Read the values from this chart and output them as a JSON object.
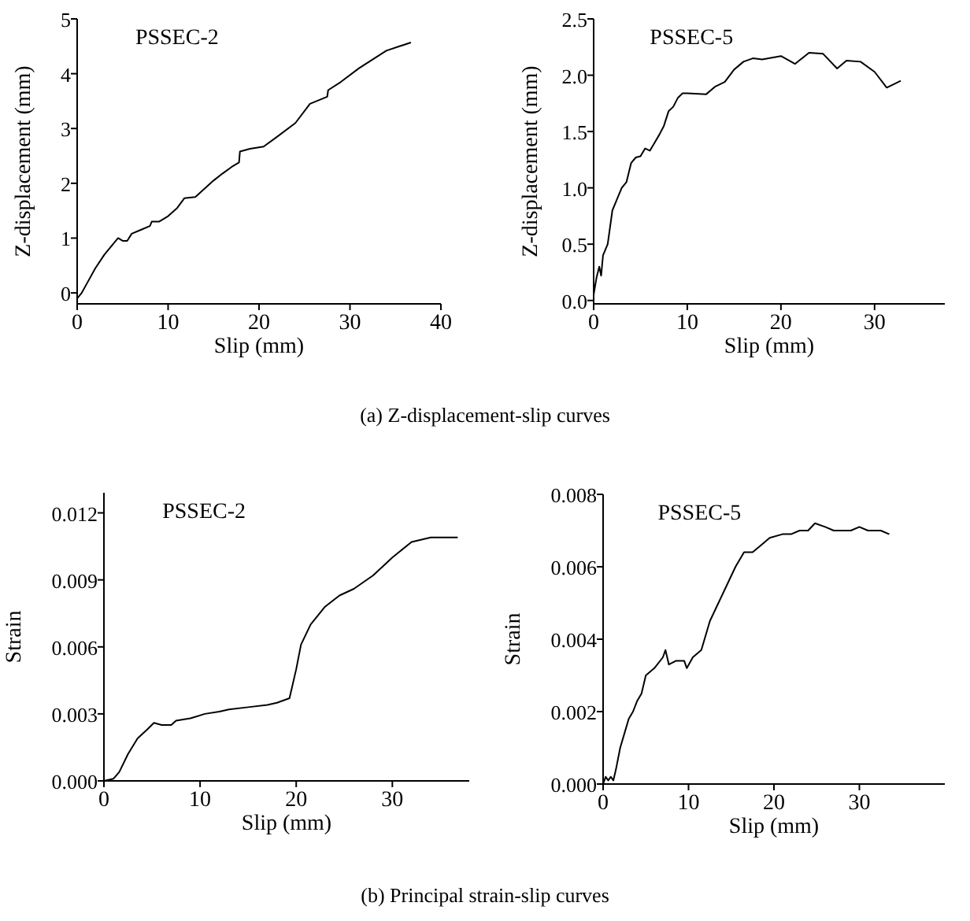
{
  "chart_data": [
    {
      "type": "line",
      "title": "PSSEC-2",
      "xlabel": "Slip (mm)",
      "ylabel": "Z-displacement (mm)",
      "xlim": [
        0,
        40
      ],
      "ylim": [
        -0.2,
        5
      ],
      "xticks": [
        0,
        10,
        20,
        30,
        40
      ],
      "yticks": [
        0,
        1,
        2,
        3,
        4,
        5
      ],
      "grid": false,
      "marker": "none",
      "line_style": "solid",
      "series": [
        {
          "color": "#000000",
          "x": [
            0,
            0.5,
            1,
            2,
            3,
            4,
            4.5,
            5,
            5.5,
            6,
            7,
            8,
            8.2,
            9,
            10,
            11,
            11.8,
            13,
            14,
            15,
            16,
            17,
            17.8,
            17.9,
            19,
            20.5,
            22,
            24,
            25.6,
            27.5,
            27.6,
            29,
            31,
            34,
            36.7
          ],
          "values": [
            -0.1,
            0,
            0.15,
            0.45,
            0.7,
            0.9,
            1.0,
            0.95,
            0.95,
            1.08,
            1.15,
            1.22,
            1.3,
            1.3,
            1.4,
            1.55,
            1.73,
            1.75,
            1.9,
            2.05,
            2.18,
            2.3,
            2.38,
            2.58,
            2.63,
            2.67,
            2.85,
            3.1,
            3.45,
            3.58,
            3.7,
            3.85,
            4.1,
            4.42,
            4.57
          ]
        }
      ]
    },
    {
      "type": "line",
      "title": "PSSEC-5",
      "xlabel": "Slip (mm)",
      "ylabel": "Z-displacement (mm)",
      "xlim": [
        0,
        37.5
      ],
      "ylim": [
        -0.03,
        2.5
      ],
      "xticks": [
        0,
        10,
        20,
        30
      ],
      "yticks": [
        {
          "value": 0,
          "label": "0.0"
        },
        {
          "value": 0.5,
          "label": "0.5"
        },
        {
          "value": 1,
          "label": "1.0"
        },
        {
          "value": 1.5,
          "label": "1.5"
        },
        {
          "value": 2,
          "label": "2.0"
        },
        {
          "value": 2.5,
          "label": "2.5"
        }
      ],
      "grid": false,
      "marker": "none",
      "line_style": "solid",
      "annotations": [
        "(a) Z-displacement-slip curves"
      ],
      "series": [
        {
          "color": "#000000",
          "x": [
            0,
            0.3,
            0.6,
            0.8,
            1,
            1.5,
            2,
            2.5,
            3,
            3.5,
            4,
            4.5,
            5,
            5.5,
            6,
            6.5,
            7,
            7.5,
            8,
            8.5,
            9,
            9.5,
            10,
            12,
            13,
            14,
            15,
            16,
            17,
            18,
            20,
            21.5,
            23,
            24.5,
            26,
            27,
            28.5,
            30,
            31.3,
            32.8
          ],
          "values": [
            0.05,
            0.2,
            0.3,
            0.22,
            0.4,
            0.5,
            0.8,
            0.9,
            1.0,
            1.05,
            1.22,
            1.27,
            1.28,
            1.35,
            1.33,
            1.4,
            1.47,
            1.55,
            1.68,
            1.72,
            1.8,
            1.84,
            1.84,
            1.83,
            1.9,
            1.94,
            2.05,
            2.12,
            2.15,
            2.14,
            2.17,
            2.1,
            2.2,
            2.19,
            2.06,
            2.13,
            2.12,
            2.03,
            1.89,
            1.95
          ]
        }
      ]
    },
    {
      "type": "line",
      "title": "PSSEC-2",
      "xlabel": "Slip (mm)",
      "ylabel": "Strain",
      "xlim": [
        0,
        38
      ],
      "ylim": [
        0,
        0.0129
      ],
      "xticks": [
        0,
        10,
        20,
        30
      ],
      "yticks": [
        {
          "value": 0,
          "label": "0.000"
        },
        {
          "value": 0.003,
          "label": "0.003"
        },
        {
          "value": 0.006,
          "label": "0.006"
        },
        {
          "value": 0.009,
          "label": "0.009"
        },
        {
          "value": 0.012,
          "label": "0.012"
        }
      ],
      "grid": false,
      "marker": "none",
      "line_style": "solid",
      "series": [
        {
          "color": "#000000",
          "x": [
            0,
            1,
            1.6,
            2.5,
            3.5,
            4.5,
            5.2,
            6,
            7,
            7.5,
            9,
            10.5,
            12,
            13,
            15,
            17,
            18,
            19.3,
            20,
            20.5,
            21.5,
            23,
            24.5,
            26,
            28,
            30,
            32,
            34,
            36.8
          ],
          "values": [
            0,
            0.0001,
            0.0004,
            0.0012,
            0.0019,
            0.0023,
            0.0026,
            0.0025,
            0.0025,
            0.0027,
            0.0028,
            0.003,
            0.0031,
            0.0032,
            0.0033,
            0.0034,
            0.0035,
            0.0037,
            0.005,
            0.0061,
            0.007,
            0.0078,
            0.0083,
            0.0086,
            0.0092,
            0.01,
            0.0107,
            0.0109,
            0.0109
          ]
        }
      ]
    },
    {
      "type": "line",
      "title": "PSSEC-5",
      "xlabel": "Slip (mm)",
      "ylabel": "Strain",
      "xlim": [
        0,
        40
      ],
      "ylim": [
        0,
        0.008
      ],
      "xticks": [
        0,
        10,
        20,
        30
      ],
      "yticks": [
        {
          "value": 0,
          "label": "0.000"
        },
        {
          "value": 0.002,
          "label": "0.002"
        },
        {
          "value": 0.004,
          "label": "0.004"
        },
        {
          "value": 0.006,
          "label": "0.006"
        },
        {
          "value": 0.008,
          "label": "0.008"
        }
      ],
      "grid": false,
      "marker": "none",
      "line_style": "solid",
      "annotations": [
        "(b) Principal strain-slip curves"
      ],
      "series": [
        {
          "color": "#000000",
          "x": [
            0,
            0.3,
            0.6,
            0.9,
            1.2,
            1.5,
            2,
            2.5,
            3,
            3.5,
            4,
            4.5,
            5,
            6,
            7,
            7.3,
            7.7,
            8.5,
            9.5,
            9.8,
            10.5,
            11.5,
            12.5,
            13.5,
            14.5,
            15.5,
            16.5,
            17.5,
            18.5,
            19.5,
            21,
            22,
            23,
            24,
            24.8,
            26,
            27,
            29,
            30,
            31,
            32.5,
            33.5
          ],
          "values": [
            0,
            0.0002,
            0.0001,
            0.0002,
            0.0001,
            0.0004,
            0.001,
            0.0014,
            0.0018,
            0.002,
            0.0023,
            0.0025,
            0.003,
            0.0032,
            0.0035,
            0.0037,
            0.0033,
            0.0034,
            0.0034,
            0.0032,
            0.0035,
            0.0037,
            0.0045,
            0.005,
            0.0055,
            0.006,
            0.0064,
            0.0064,
            0.0066,
            0.0068,
            0.0069,
            0.0069,
            0.007,
            0.007,
            0.0072,
            0.0071,
            0.007,
            0.007,
            0.0071,
            0.007,
            0.007,
            0.0069
          ]
        }
      ]
    }
  ]
}
